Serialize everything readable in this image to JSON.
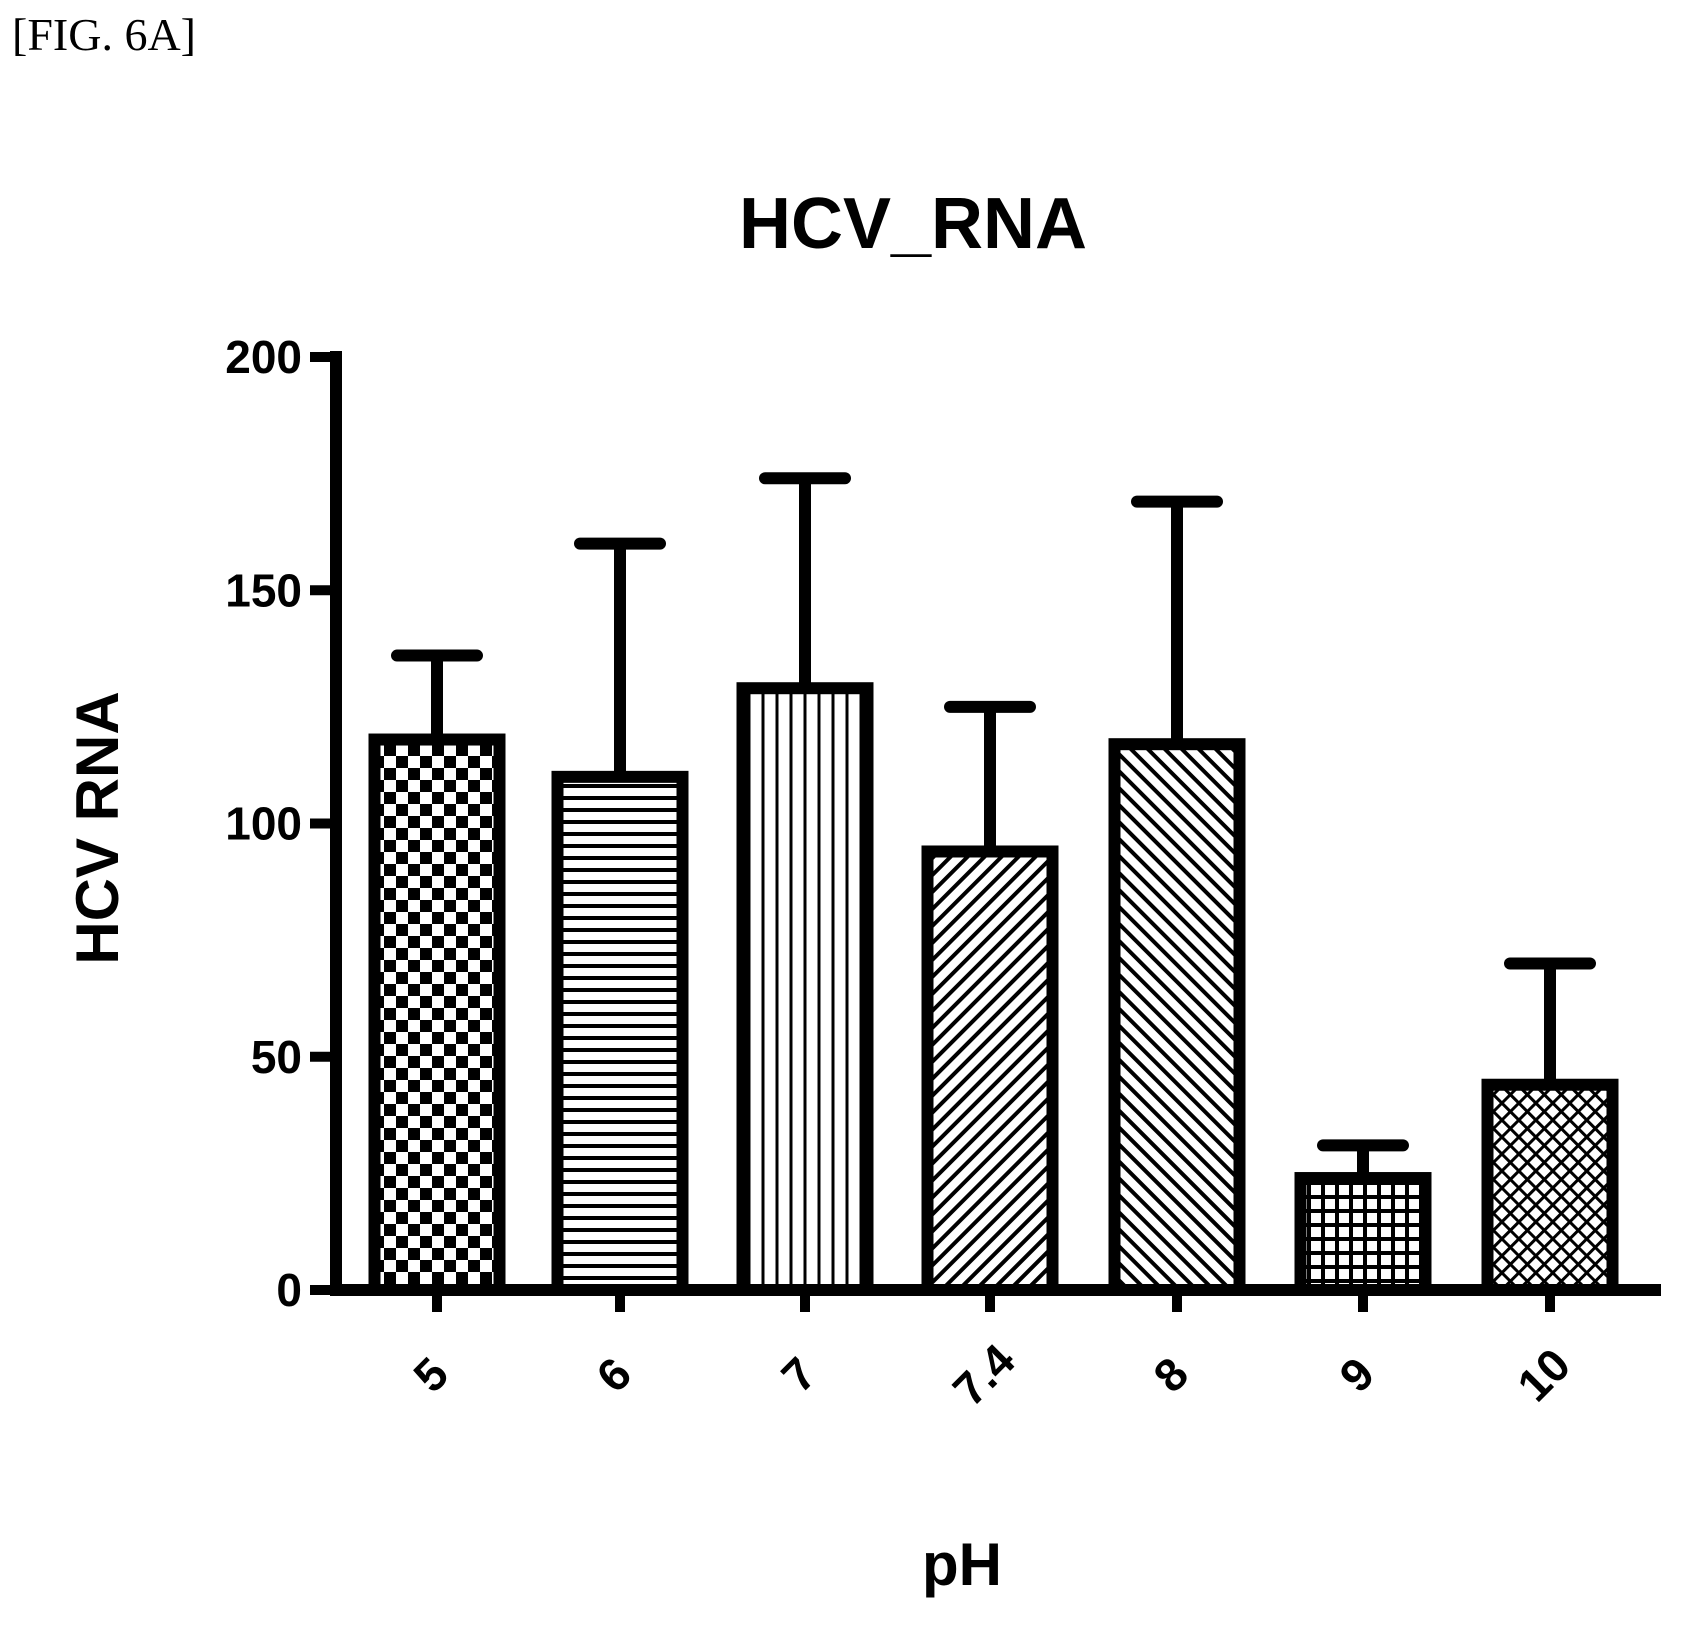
{
  "figure_label": "[FIG. 6A]",
  "chart_data": {
    "type": "bar",
    "title": "HCV_RNA",
    "xlabel": "pH",
    "ylabel": "HCV RNA",
    "categories": [
      "5",
      "6",
      "7",
      "7.4",
      "8",
      "9",
      "10"
    ],
    "series": [
      {
        "values": [
          118,
          110,
          129,
          94,
          117,
          24,
          44
        ],
        "error_upper": [
          136,
          160,
          174,
          125,
          169,
          31,
          70
        ]
      }
    ],
    "ylim": [
      0,
      200
    ],
    "yticks": [
      0,
      50,
      100,
      150,
      200
    ],
    "bar_fill": [
      "checker",
      "horizontal-lines",
      "vertical-lines",
      "diagonal-back",
      "diagonal-forward",
      "grid",
      "crosshatch"
    ],
    "grid": false,
    "legend": "none",
    "colors": {
      "stroke": "#000000",
      "background": "#ffffff"
    }
  }
}
